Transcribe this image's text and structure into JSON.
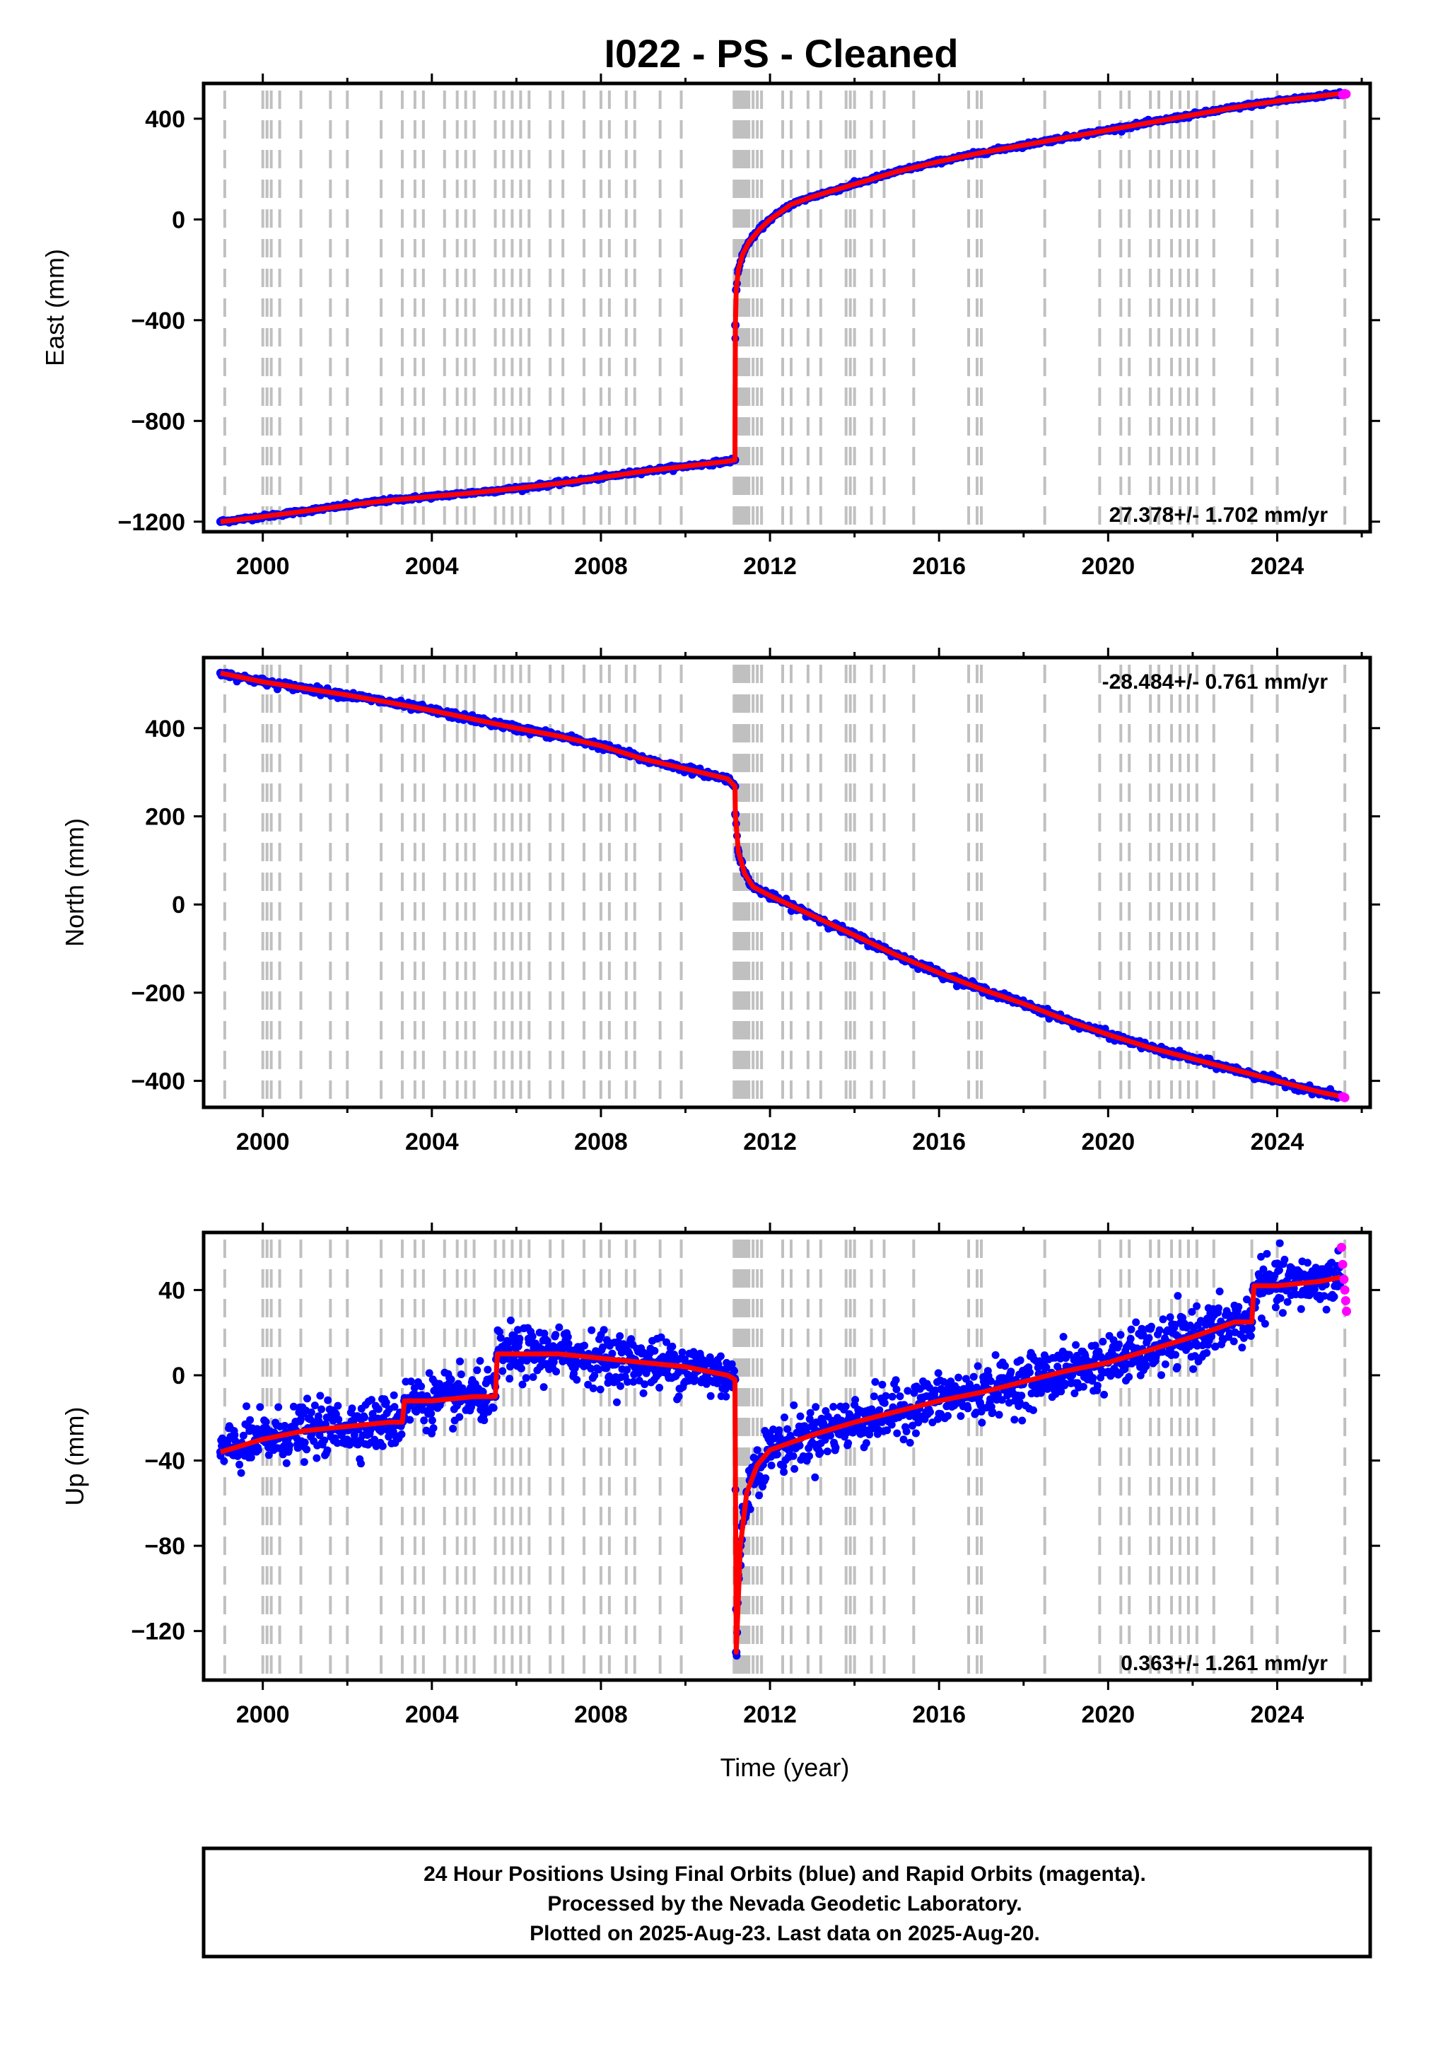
{
  "title": "I022  - PS - Cleaned",
  "xlabel": "Time (year)",
  "footer": {
    "lines": [
      "24 Hour Positions Using Final Orbits (blue) and Rapid Orbits (magenta).",
      "Processed by the Nevada Geodetic Laboratory.",
      "Plotted on 2025-Aug-23. Last data on 2025-Aug-20."
    ]
  },
  "colors": {
    "final": "#0000ff",
    "rapid": "#ff00ff",
    "model": "#ff0000",
    "steps": "#c0c0c0"
  },
  "chart_data": [
    {
      "type": "scatter",
      "component": "east",
      "ylabel": "East (mm)",
      "rate": "27.378+/- 1.702 mm/yr",
      "xlim": [
        1998.6,
        2026.2
      ],
      "ylim": [
        -1240,
        540
      ],
      "yticks": [
        -1200,
        -800,
        -400,
        0,
        400
      ],
      "xticks": [
        2000,
        2004,
        2008,
        2012,
        2016,
        2020,
        2024
      ],
      "series": [
        {
          "name": "Final Orbits",
          "x": [
            1999.0,
            2000.0,
            2001.0,
            2002.0,
            2003.0,
            2004.0,
            2005.0,
            2006.0,
            2007.0,
            2008.0,
            2009.0,
            2010.0,
            2011.0,
            2011.17,
            2011.18,
            2011.2,
            2011.25,
            2011.35,
            2011.5,
            2011.75,
            2012.0,
            2012.5,
            2013.0,
            2014.0,
            2015.0,
            2016.0,
            2017.0,
            2018.0,
            2019.0,
            2020.0,
            2021.0,
            2022.0,
            2023.0,
            2024.0,
            2025.0,
            2025.5
          ],
          "values": [
            -1200,
            -1180,
            -1158,
            -1135,
            -1115,
            -1100,
            -1085,
            -1068,
            -1048,
            -1025,
            -1000,
            -980,
            -960,
            -955,
            -420,
            -280,
            -200,
            -140,
            -90,
            -40,
            0,
            60,
            90,
            140,
            190,
            230,
            265,
            295,
            325,
            355,
            385,
            415,
            445,
            470,
            490,
            500
          ]
        },
        {
          "name": "Rapid Orbits",
          "x": [
            2025.55,
            2025.6,
            2025.63
          ],
          "values": [
            495,
            500,
            498
          ]
        }
      ]
    },
    {
      "type": "scatter",
      "component": "north",
      "ylabel": "North (mm)",
      "rate": "-28.484+/- 0.761 mm/yr",
      "xlim": [
        1998.6,
        2026.2
      ],
      "ylim": [
        -460,
        560
      ],
      "yticks": [
        -400,
        -200,
        0,
        200,
        400
      ],
      "xticks": [
        2000,
        2004,
        2008,
        2012,
        2016,
        2020,
        2024
      ],
      "series": [
        {
          "name": "Final Orbits",
          "x": [
            1999.0,
            2000.0,
            2001.0,
            2002.0,
            2003.0,
            2004.0,
            2005.0,
            2006.0,
            2007.0,
            2008.0,
            2009.0,
            2010.0,
            2011.0,
            2011.17,
            2011.18,
            2011.25,
            2011.4,
            2011.6,
            2012.0,
            2013.0,
            2014.0,
            2015.0,
            2016.0,
            2017.0,
            2018.0,
            2019.0,
            2020.0,
            2021.0,
            2022.0,
            2023.0,
            2024.0,
            2025.0,
            2025.5
          ],
          "values": [
            525,
            505,
            490,
            475,
            458,
            440,
            420,
            400,
            382,
            360,
            330,
            308,
            285,
            268,
            205,
            120,
            70,
            40,
            20,
            -25,
            -70,
            -115,
            -155,
            -192,
            -225,
            -262,
            -295,
            -325,
            -350,
            -375,
            -400,
            -425,
            -435
          ]
        },
        {
          "name": "Rapid Orbits",
          "x": [
            2025.55,
            2025.6
          ],
          "values": [
            -436,
            -438
          ]
        }
      ]
    },
    {
      "type": "scatter",
      "component": "up",
      "ylabel": "Up (mm)",
      "rate": "0.363+/- 1.261 mm/yr",
      "xlim": [
        1998.6,
        2026.2
      ],
      "ylim": [
        -143,
        67
      ],
      "yticks": [
        -120,
        -80,
        -40,
        0,
        40
      ],
      "xticks": [
        2000,
        2004,
        2008,
        2012,
        2016,
        2020,
        2024
      ],
      "series": [
        {
          "name": "Final Orbits",
          "x": [
            1999.0,
            2000.0,
            2001.0,
            2002.0,
            2003.0,
            2003.3,
            2003.35,
            2004.0,
            2005.0,
            2005.5,
            2005.55,
            2006.0,
            2007.0,
            2008.0,
            2009.0,
            2010.0,
            2011.0,
            2011.17,
            2011.2,
            2011.3,
            2011.45,
            2011.7,
            2012.0,
            2013.0,
            2014.0,
            2015.0,
            2016.0,
            2017.0,
            2018.0,
            2019.0,
            2020.0,
            2021.0,
            2022.0,
            2023.0,
            2023.4,
            2023.45,
            2024.0,
            2025.0,
            2025.5
          ],
          "values": [
            -36,
            -30,
            -26,
            -24,
            -22,
            -22,
            -12,
            -12,
            -10,
            -10,
            10,
            10,
            10,
            8,
            6,
            4,
            0,
            -2,
            -130,
            -80,
            -55,
            -42,
            -35,
            -28,
            -22,
            -17,
            -12,
            -8,
            -3,
            2,
            6,
            12,
            18,
            25,
            25,
            42,
            42,
            44,
            46
          ]
        },
        {
          "name": "Rapid Orbits",
          "x": [
            2025.52,
            2025.55,
            2025.58,
            2025.6,
            2025.62,
            2025.64
          ],
          "values": [
            60,
            52,
            45,
            40,
            35,
            30
          ]
        }
      ]
    }
  ]
}
